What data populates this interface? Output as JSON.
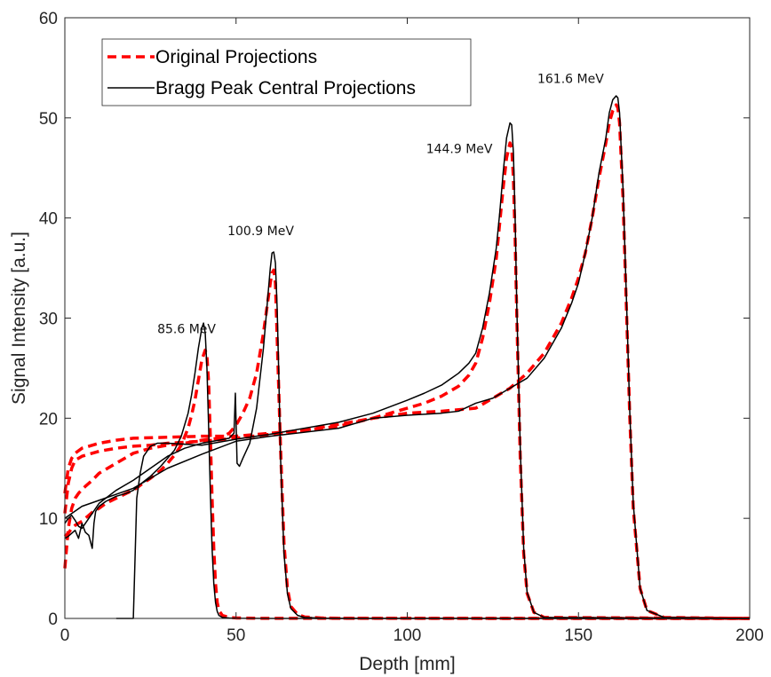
{
  "chart_data": {
    "type": "line",
    "xlabel": "Depth [mm]",
    "ylabel": "Signal Intensity [a.u.]",
    "xlim": [
      0,
      200
    ],
    "ylim": [
      0,
      60
    ],
    "xticks": [
      0,
      50,
      100,
      150,
      200
    ],
    "yticks": [
      0,
      10,
      20,
      30,
      40,
      50,
      60
    ],
    "grid": false,
    "legend": {
      "placement": "top-left",
      "entries": [
        "Original Projections",
        "Bragg Peak Central Projections"
      ]
    },
    "colors": {
      "original": "#ff0000",
      "central": "#000000"
    },
    "annotations": [
      {
        "text": "85.6 MeV",
        "x": 27,
        "y": 28.5
      },
      {
        "text": "100.9 MeV",
        "x": 47.5,
        "y": 38.3
      },
      {
        "text": "144.9 MeV",
        "x": 105.5,
        "y": 46.5
      },
      {
        "text": "161.6 MeV",
        "x": 138,
        "y": 53.5
      }
    ],
    "series": [
      {
        "name": "Original Projections",
        "energy": "85.6 MeV",
        "style": "dashed",
        "x": [
          0,
          1,
          2,
          3,
          4,
          5,
          6,
          7,
          8,
          10,
          12,
          15,
          18,
          20,
          22,
          25,
          28,
          30,
          32,
          34,
          36,
          37,
          38,
          39,
          40,
          41,
          41.5,
          42,
          42.5,
          43,
          43.5,
          44,
          44.5,
          45,
          46,
          48,
          50,
          55,
          60,
          200
        ],
        "y": [
          8.2,
          8.5,
          9.0,
          9.3,
          9.5,
          9.7,
          10.0,
          10.3,
          10.6,
          11.0,
          11.5,
          12.0,
          12.5,
          12.8,
          13.3,
          14.0,
          14.8,
          15.5,
          16.3,
          17.3,
          19.0,
          20.3,
          21.8,
          23.8,
          25.8,
          26.8,
          26.2,
          23.5,
          18.0,
          12.0,
          7.0,
          3.5,
          1.6,
          0.8,
          0.3,
          0.1,
          0.05,
          0.02,
          0.01,
          0
        ]
      },
      {
        "name": "Original Projections",
        "energy": "100.9 MeV",
        "style": "dashed",
        "x": [
          0,
          1,
          2,
          3,
          4,
          6,
          8,
          10,
          15,
          20,
          25,
          30,
          35,
          40,
          45,
          48,
          50,
          52,
          54,
          56,
          57,
          58,
          59,
          60,
          60.5,
          61,
          61.5,
          62,
          63,
          64,
          65,
          66,
          68,
          70,
          75,
          80,
          200
        ],
        "y": [
          5.0,
          9.0,
          11.0,
          12.0,
          12.5,
          13.2,
          13.8,
          14.5,
          15.5,
          16.5,
          17.0,
          17.3,
          17.5,
          17.8,
          18.0,
          18.5,
          19.3,
          20.5,
          22.0,
          24.5,
          26.5,
          28.5,
          31.0,
          33.5,
          34.5,
          34.8,
          33.5,
          28.0,
          17.0,
          7.5,
          3.0,
          1.2,
          0.4,
          0.15,
          0.05,
          0.02,
          0
        ]
      },
      {
        "name": "Original Projections",
        "energy": "144.9 MeV",
        "style": "dashed",
        "x": [
          0,
          1,
          2,
          3,
          5,
          8,
          10,
          15,
          20,
          25,
          30,
          40,
          50,
          60,
          70,
          80,
          90,
          100,
          105,
          110,
          115,
          118,
          120,
          122,
          124,
          126,
          127,
          128,
          129,
          130,
          130.5,
          131,
          131.5,
          132,
          133,
          134,
          135,
          137,
          140,
          200
        ],
        "y": [
          10.5,
          13.5,
          15.0,
          15.8,
          16.2,
          16.5,
          16.7,
          17.0,
          17.2,
          17.3,
          17.5,
          17.7,
          18.0,
          18.4,
          18.8,
          19.4,
          20.0,
          21.0,
          21.5,
          22.2,
          23.2,
          24.3,
          25.5,
          28.0,
          31.5,
          36.0,
          39.5,
          43.0,
          46.0,
          47.5,
          47.0,
          44.0,
          38.0,
          30.0,
          16.0,
          6.5,
          2.5,
          0.6,
          0.1,
          0
        ]
      },
      {
        "name": "Original Projections",
        "energy": "161.6 MeV",
        "style": "dashed",
        "x": [
          0,
          1,
          2,
          3,
          5,
          8,
          10,
          15,
          20,
          30,
          40,
          50,
          60,
          70,
          80,
          90,
          100,
          110,
          120,
          125,
          130,
          135,
          140,
          145,
          148,
          150,
          152,
          154,
          156,
          158,
          159,
          160,
          161,
          161.5,
          162,
          163,
          164,
          165,
          166,
          168,
          170,
          175,
          200
        ],
        "y": [
          12.5,
          15.0,
          16.0,
          16.5,
          17.0,
          17.3,
          17.5,
          17.8,
          18.0,
          18.1,
          18.2,
          18.2,
          18.5,
          18.8,
          19.2,
          20.0,
          20.5,
          20.7,
          21.0,
          22.0,
          23.0,
          24.5,
          26.5,
          29.5,
          32.0,
          34.0,
          36.5,
          40.0,
          44.0,
          47.5,
          49.5,
          50.7,
          51.3,
          51.0,
          49.5,
          42.0,
          31.0,
          20.0,
          11.0,
          3.0,
          0.8,
          0.1,
          0
        ]
      },
      {
        "name": "Bragg Peak Central Projections",
        "energy": "85.6 MeV",
        "style": "solid",
        "x": [
          0,
          1,
          2,
          3,
          4,
          5,
          6,
          7,
          8,
          8.5,
          9,
          10,
          12,
          15,
          18,
          20,
          22,
          25,
          28,
          30,
          32,
          34,
          36,
          37,
          38,
          39,
          40,
          40.5,
          41,
          41.5,
          42,
          42.5,
          43,
          43.5,
          44,
          44.5,
          45,
          46,
          48,
          50,
          55,
          60,
          200
        ],
        "y": [
          8.0,
          8.2,
          8.5,
          8.8,
          8.0,
          9.5,
          8.6,
          8.3,
          7.0,
          9.5,
          10.7,
          11.2,
          11.7,
          12.2,
          12.5,
          12.8,
          13.4,
          14.2,
          15.2,
          16.0,
          16.8,
          18.2,
          20.5,
          22.3,
          24.5,
          27.0,
          29.0,
          29.5,
          28.5,
          25.0,
          19.0,
          12.5,
          7.0,
          3.5,
          1.6,
          0.7,
          0.3,
          0.1,
          0.05,
          0.02,
          0.01,
          0,
          0
        ]
      },
      {
        "name": "Bragg Peak Central Projections",
        "energy": "100.9 MeV",
        "style": "solid",
        "x": [
          0,
          1,
          2,
          3,
          4,
          5,
          6,
          8,
          10,
          15,
          20,
          25,
          30,
          35,
          40,
          45,
          48,
          49.4,
          49.8,
          50.3,
          51,
          52,
          54,
          56,
          57,
          58,
          59,
          60,
          60.5,
          61,
          61.5,
          62,
          62.5,
          63,
          64,
          65,
          66,
          68,
          70,
          75,
          80,
          200
        ],
        "y": [
          9.5,
          10.0,
          10.3,
          9.8,
          9.2,
          9.0,
          9.5,
          10.5,
          11.5,
          12.8,
          13.8,
          15.0,
          16.2,
          17.0,
          17.5,
          17.8,
          18.0,
          18.5,
          22.5,
          15.5,
          15.2,
          16.0,
          17.5,
          21.0,
          24.0,
          27.0,
          31.0,
          35.0,
          36.5,
          36.6,
          35.5,
          31.0,
          24.0,
          16.0,
          6.5,
          2.5,
          1.0,
          0.3,
          0.1,
          0.03,
          0.01,
          0
        ]
      },
      {
        "name": "Bragg Peak Central Projections",
        "energy": "144.9 MeV",
        "style": "solid",
        "x": [
          15,
          20,
          20.5,
          21,
          22,
          23,
          25,
          27,
          30,
          35,
          40,
          45,
          50,
          60,
          70,
          80,
          90,
          100,
          105,
          110,
          115,
          118,
          120,
          122,
          124,
          126,
          127,
          128,
          129,
          130,
          130.5,
          131,
          131.5,
          132,
          133,
          134,
          135,
          137,
          140,
          200
        ],
        "y": [
          0,
          0,
          6.0,
          12.0,
          14.5,
          16.2,
          17.2,
          17.5,
          17.5,
          17.4,
          17.3,
          17.6,
          17.9,
          18.4,
          19.0,
          19.6,
          20.5,
          21.8,
          22.5,
          23.3,
          24.5,
          25.5,
          26.5,
          29.0,
          32.5,
          37.0,
          40.5,
          44.5,
          48.0,
          49.5,
          49.3,
          46.5,
          40.0,
          31.0,
          17.0,
          7.0,
          2.6,
          0.6,
          0.1,
          0
        ]
      },
      {
        "name": "Bragg Peak Central Projections",
        "energy": "161.6 MeV",
        "style": "solid",
        "x": [
          0,
          5,
          10,
          15,
          20,
          25,
          30,
          40,
          50,
          60,
          70,
          80,
          90,
          100,
          110,
          115,
          120,
          125,
          130,
          135,
          140,
          145,
          148,
          150,
          152,
          154,
          156,
          158,
          159,
          160,
          161,
          161.5,
          162,
          163,
          164,
          165,
          166,
          168,
          170,
          175,
          200
        ],
        "y": [
          10.0,
          11.2,
          11.8,
          12.4,
          13.0,
          14.0,
          15.0,
          16.4,
          17.7,
          18.2,
          18.6,
          19.0,
          20.0,
          20.3,
          20.5,
          20.7,
          21.5,
          22.0,
          23.0,
          24.0,
          26.0,
          29.0,
          31.5,
          33.5,
          36.5,
          40.0,
          44.5,
          48.0,
          50.5,
          51.8,
          52.2,
          52.0,
          50.5,
          43.0,
          32.0,
          20.5,
          11.5,
          3.0,
          0.8,
          0.1,
          0
        ]
      }
    ]
  }
}
